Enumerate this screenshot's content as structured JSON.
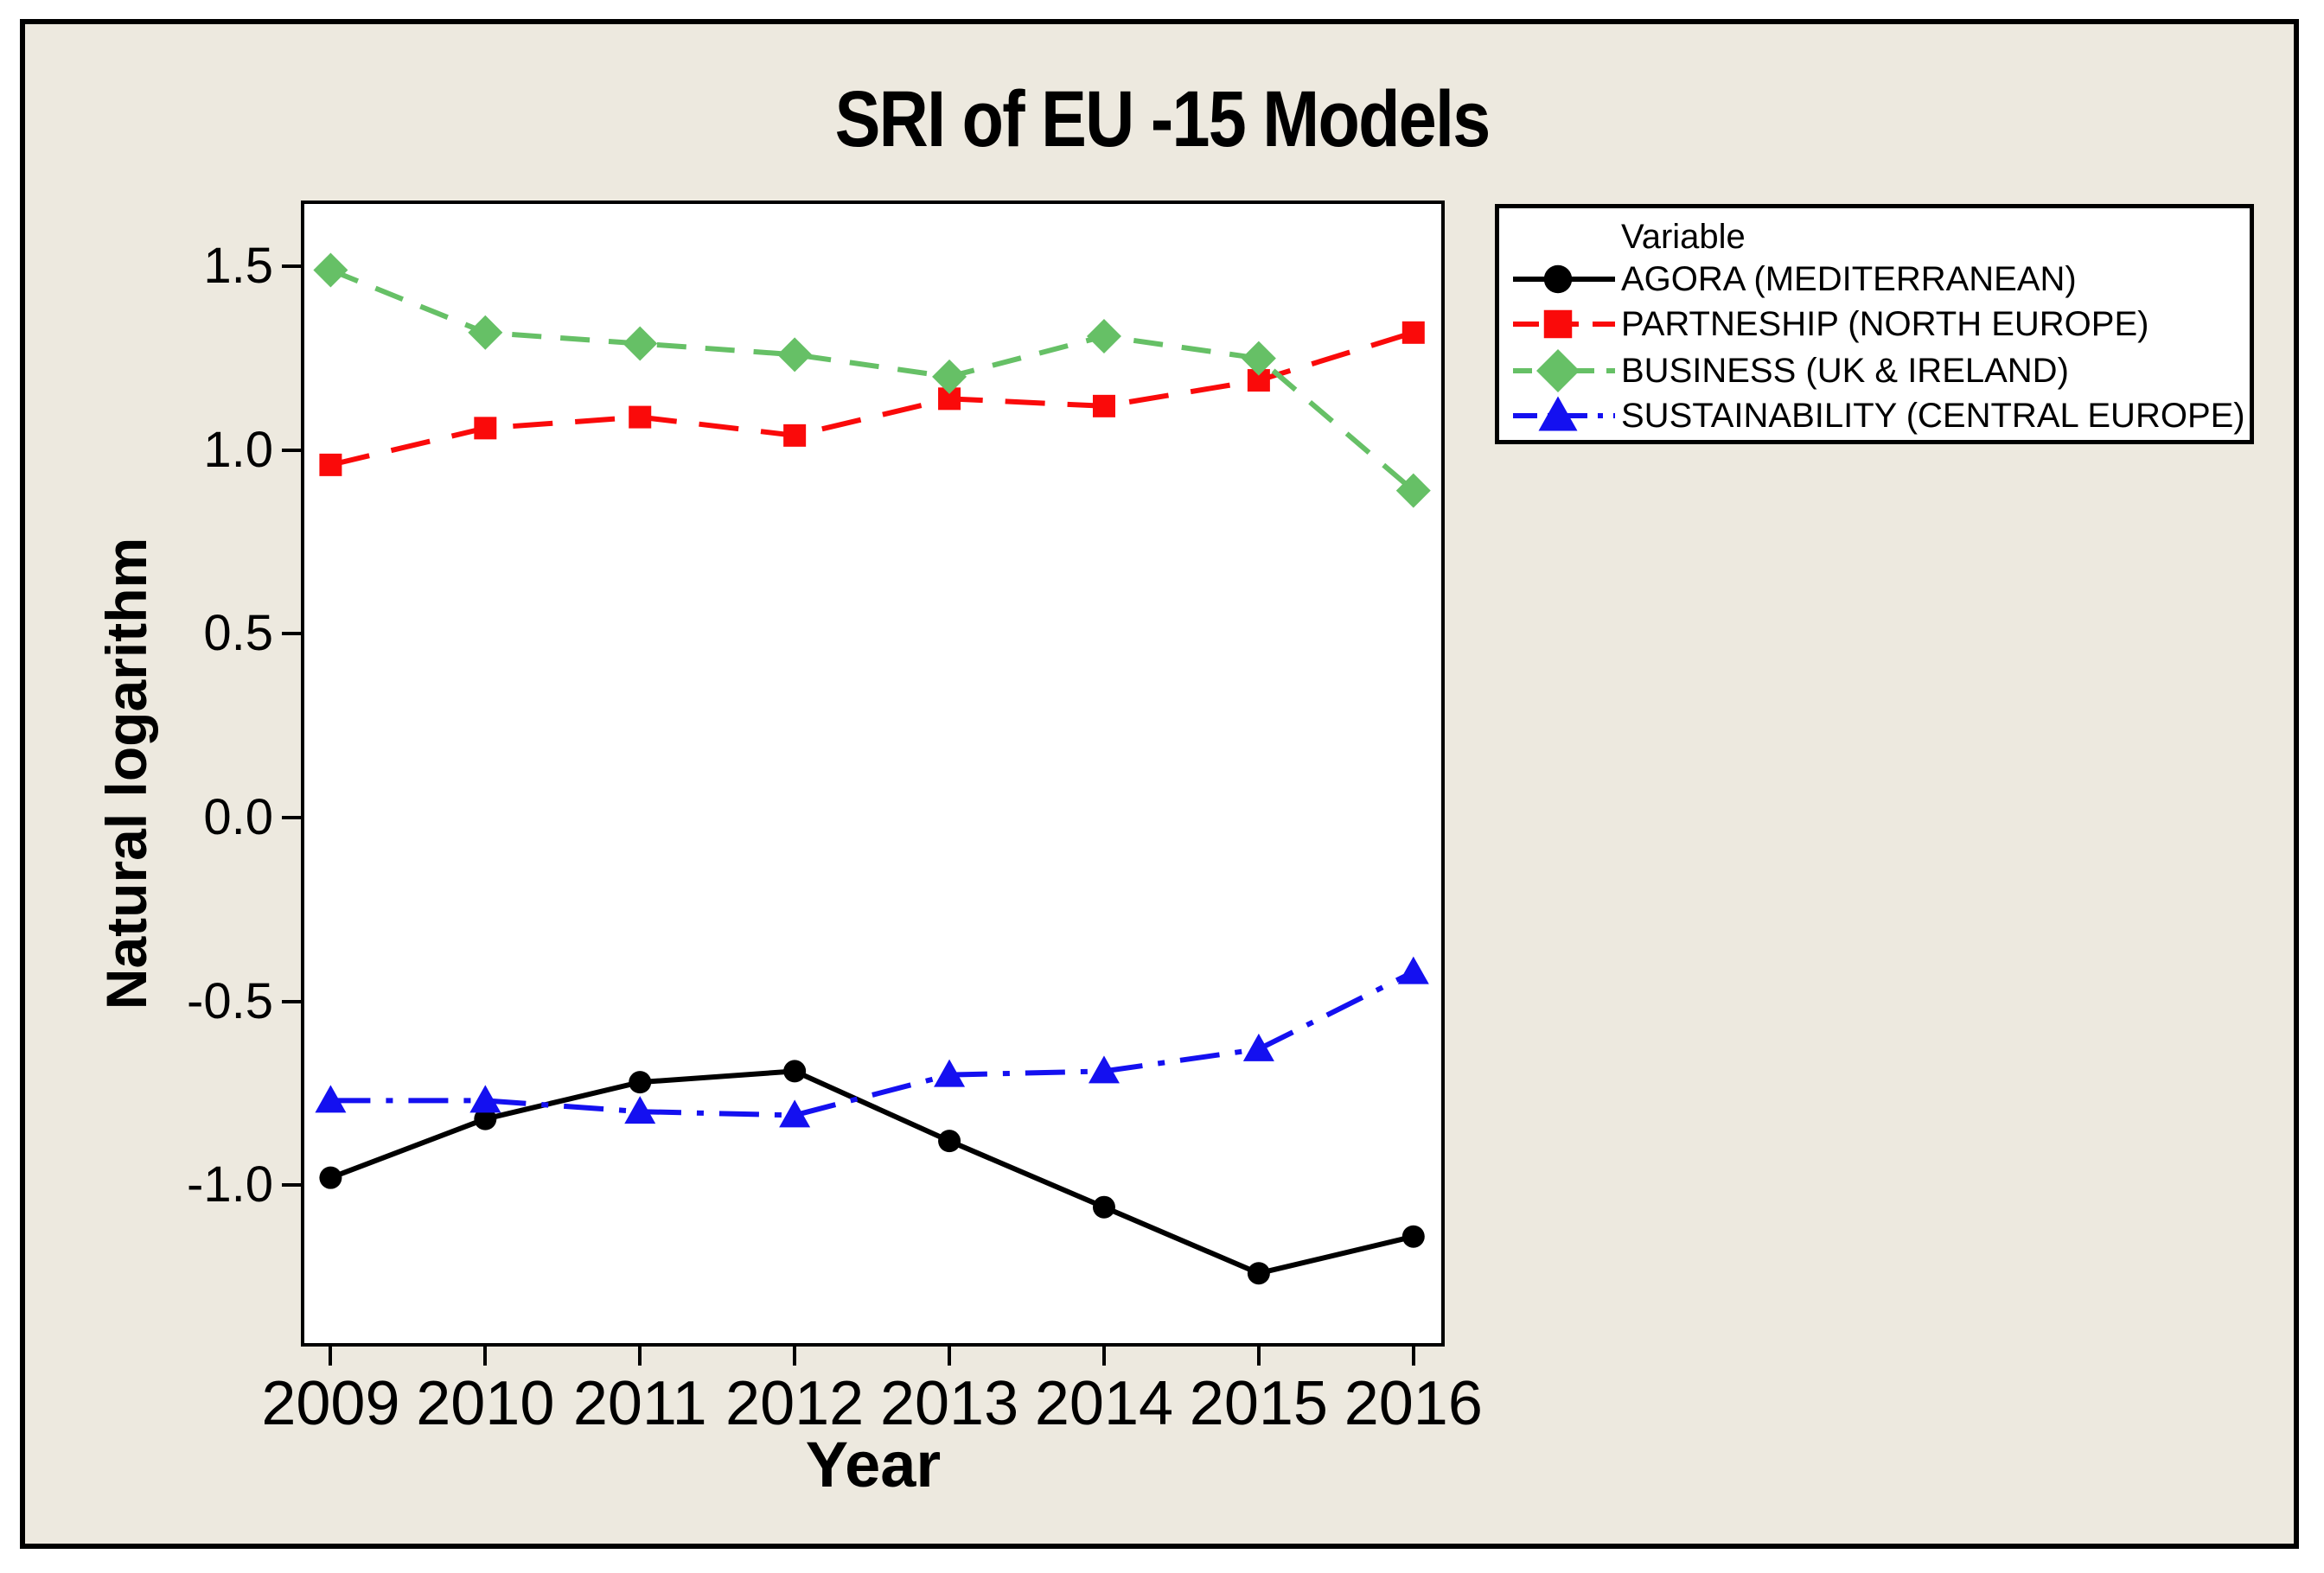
{
  "title": "SRI of EU -15 Models",
  "axes": {
    "x_label": "Year",
    "y_label": "Natural logarithm",
    "x_tick_labels": [
      "2009",
      "2010",
      "2011",
      "2012",
      "2013",
      "2014",
      "2015",
      "2016"
    ],
    "y_tick_labels": [
      "1.5",
      "1.0",
      "0.5",
      "0.0",
      "-0.5",
      "-1.0"
    ]
  },
  "legend": {
    "header": "Variable"
  },
  "colors": {
    "canvas_bg": "#EDE9DF",
    "plot_bg": "#FFFFFF",
    "frame": "#000000",
    "agora": "#000000",
    "partneship": "#FA0A0A",
    "business": "#66C066",
    "sustainability": "#1410F0"
  },
  "chart_data": {
    "type": "line",
    "title": "SRI of EU -15 Models",
    "xlabel": "Year",
    "ylabel": "Natural logarithm",
    "x": [
      2009,
      2010,
      2011,
      2012,
      2013,
      2014,
      2015,
      2016
    ],
    "xlim": [
      2008.83,
      2016.18
    ],
    "ylim": [
      -1.43,
      1.67
    ],
    "y_ticks": [
      1.5,
      1.0,
      0.5,
      0.0,
      -0.5,
      -1.0
    ],
    "grid": false,
    "legend_position": "outside-right",
    "legend_title": "Variable",
    "series": [
      {
        "name": "AGORA (MEDITERRANEAN)",
        "color": "#000000",
        "marker": "circle",
        "line_style": "solid",
        "values": [
          -0.98,
          -0.82,
          -0.72,
          -0.69,
          -0.88,
          -1.06,
          -1.24,
          -1.14
        ]
      },
      {
        "name": "PARTNESHIP (NORTH EUROPE)",
        "color": "#FA0A0A",
        "marker": "square",
        "line_style": "long-dash",
        "values": [
          0.96,
          1.06,
          1.09,
          1.04,
          1.14,
          1.12,
          1.19,
          1.32
        ]
      },
      {
        "name": "BUSINESS (UK & IRELAND)",
        "color": "#66C066",
        "marker": "diamond",
        "line_style": "dashed",
        "values": [
          1.49,
          1.32,
          1.29,
          1.26,
          1.2,
          1.31,
          1.25,
          0.89
        ]
      },
      {
        "name": "SUSTAINABILITY (CENTRAL EUROPE)",
        "color": "#1410F0",
        "marker": "triangle",
        "line_style": "dash-dot",
        "values": [
          -0.77,
          -0.77,
          -0.8,
          -0.81,
          -0.7,
          -0.69,
          -0.63,
          -0.42
        ]
      }
    ]
  }
}
